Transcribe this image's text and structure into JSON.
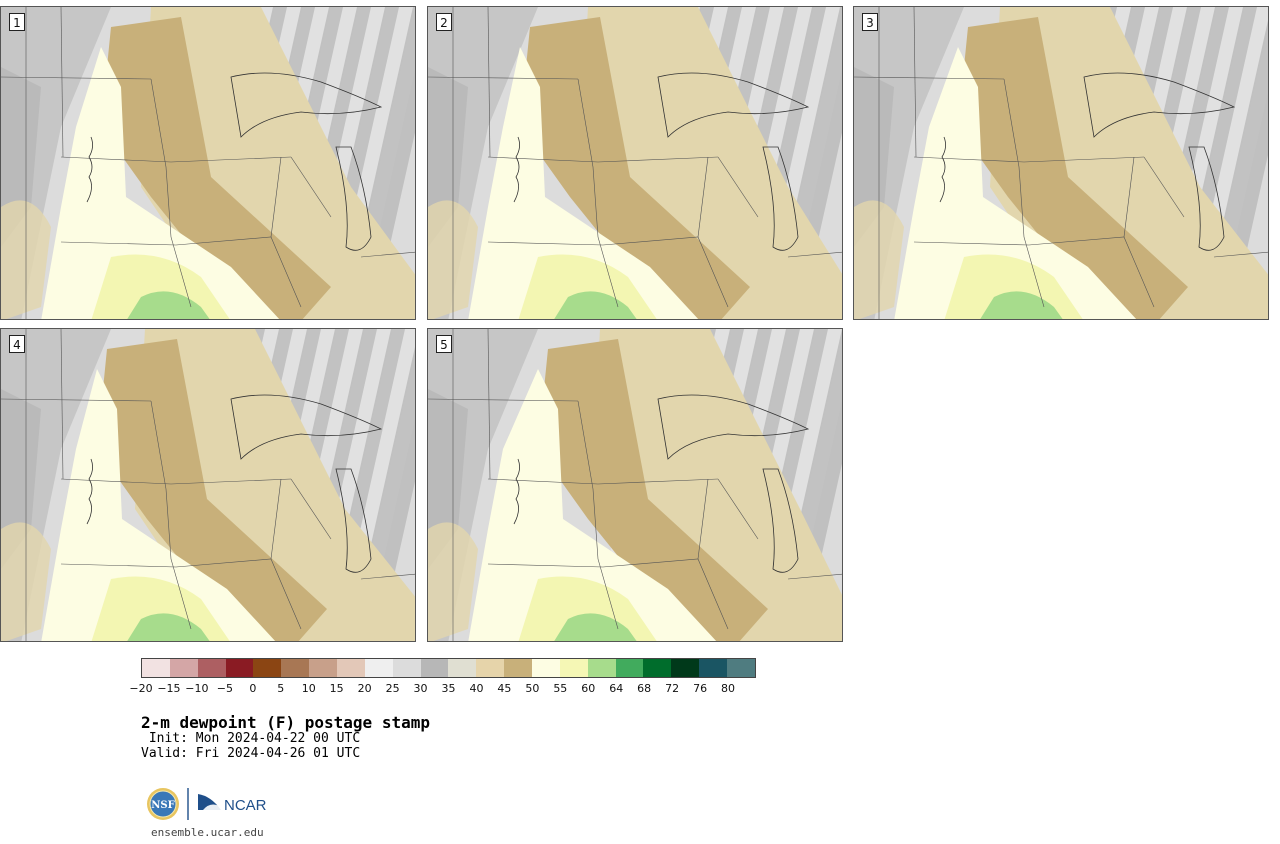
{
  "panels": [
    {
      "label": "1"
    },
    {
      "label": "2"
    },
    {
      "label": "3"
    },
    {
      "label": "4"
    },
    {
      "label": "5"
    }
  ],
  "colorbar": {
    "colors": [
      "#f2e2e2",
      "#d4a6a6",
      "#ad5f62",
      "#8a1b23",
      "#8b4513",
      "#a87754",
      "#c8a08a",
      "#e3c8b8",
      "#efefef",
      "#dcdcdc",
      "#b7b7b7",
      "#e0dfd2",
      "#e6d4aa",
      "#c8b07a",
      "#fdfde3",
      "#f5f7b5",
      "#a7dc8c",
      "#41ab5d",
      "#006d2c",
      "#00391a",
      "#1a5563",
      "#4f7c80"
    ],
    "tick_labels": [
      "−20",
      "−15",
      "−10",
      "−5",
      "0",
      "5",
      "10",
      "15",
      "20",
      "25",
      "30",
      "35",
      "40",
      "45",
      "50",
      "55",
      "60",
      "64",
      "68",
      "72",
      "76",
      "80"
    ]
  },
  "title": "2-m dewpoint (F) postage stamp",
  "init": " Init: Mon 2024-04-22 00 UTC",
  "valid": "Valid: Fri 2024-04-26 01 UTC",
  "logos": {
    "nsf": "NSF",
    "ncar": "NCAR"
  },
  "url": "ensemble.ucar.edu"
}
